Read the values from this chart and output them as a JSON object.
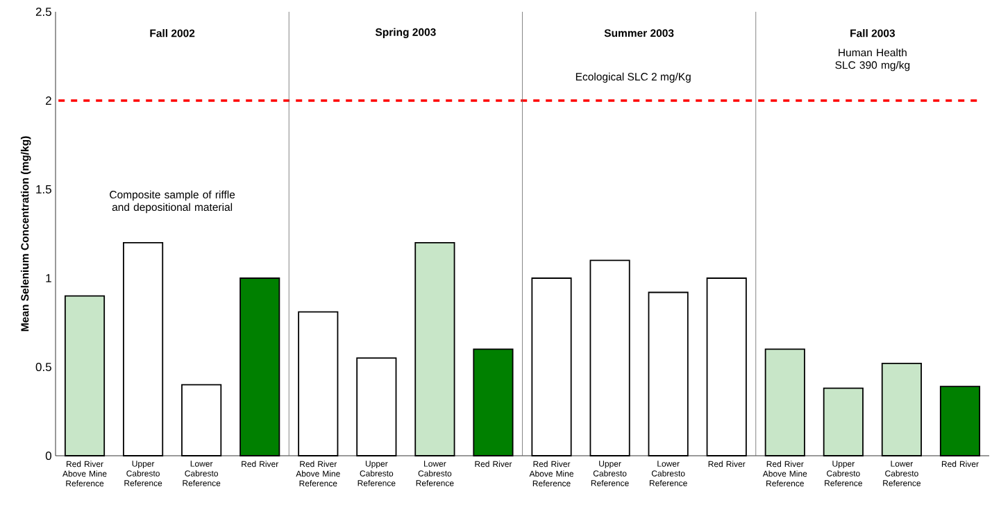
{
  "chart_data": {
    "type": "bar",
    "ylabel": "Mean Selenium Concentration (mg/kg)",
    "categories": [
      "Red River Above Mine Reference",
      "Upper Cabresto Reference",
      "Lower Cabresto Reference",
      "Red River",
      "Red River Above Mine Reference",
      "Upper Cabresto Reference",
      "Lower Cabresto Reference",
      "Red River",
      "Red River Above Mine Reference",
      "Upper Cabresto Reference",
      "Lower Cabresto Reference",
      "Red River",
      "Red River Above Mine Reference",
      "Upper Cabresto Reference",
      "Lower Cabresto Reference",
      "Red River"
    ],
    "values": [
      0.9,
      1.2,
      0.4,
      1.0,
      0.81,
      0.55,
      1.2,
      0.6,
      1.0,
      1.1,
      0.92,
      1.0,
      0.6,
      0.38,
      0.52,
      0.39
    ],
    "colors": [
      "#c8e6c8",
      "#ffffff",
      "#ffffff",
      "#008000",
      "#ffffff",
      "#ffffff",
      "#c8e6c8",
      "#008000",
      "#ffffff",
      "#ffffff",
      "#ffffff",
      "#ffffff",
      "#c8e6c8",
      "#c8e6c8",
      "#c8e6c8",
      "#008000"
    ],
    "ylim": [
      0,
      2.5
    ],
    "yticks": [
      0,
      0.5,
      1,
      1.5,
      2,
      2.5
    ],
    "ref_lines": [
      {
        "axis": "y",
        "value": 2,
        "label": "Ecological SLC  2 mg/Kg",
        "color": "#ff0000",
        "line_style": "dashed"
      }
    ],
    "annotations": [
      "Fall 2002",
      "Spring 2003",
      "Summer 2003",
      "Fall 2003",
      "Composite sample of riffle and depositional material",
      "Human Health SLC 390 mg/kg"
    ]
  }
}
